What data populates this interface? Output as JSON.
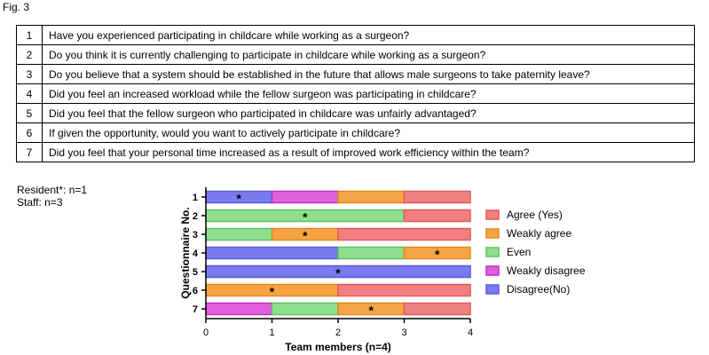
{
  "fig_label": "Fig. 3",
  "questions": [
    {
      "no": "1",
      "text": "Have you experienced participating in childcare while working as a surgeon?"
    },
    {
      "no": "2",
      "text": "Do you think it is currently challenging to participate in childcare while working as a surgeon?"
    },
    {
      "no": "3",
      "text": "Do you believe that a system should be established in the future that allows male surgeons to take paternity leave?"
    },
    {
      "no": "4",
      "text": "Did you feel an increased workload while the fellow surgeon was participating in childcare?"
    },
    {
      "no": "5",
      "text": "Did you feel that the fellow surgeon who participated in childcare was unfairly advantaged?"
    },
    {
      "no": "6",
      "text": "If given the opportunity, would you want to actively participate in childcare?"
    },
    {
      "no": "7",
      "text": "Did you feel that your personal time increased as a result of improved work efficiency within the team?"
    }
  ],
  "notes": {
    "resident": "Resident*: n=1",
    "staff": "Staff: n=3"
  },
  "chart_data": {
    "type": "bar",
    "orientation": "horizontal",
    "stacked": true,
    "xlabel": "Team members (n=4)",
    "ylabel": "Questionnaire No.",
    "xlim": [
      0,
      4
    ],
    "xticks": [
      "0",
      "1",
      "2",
      "3",
      "4"
    ],
    "categories": [
      "1",
      "2",
      "3",
      "4",
      "5",
      "6",
      "7"
    ],
    "legend_position": "right",
    "series": [
      {
        "name": "Disagree(No)",
        "color": "#7b7bf0",
        "stroke": "#5a5ae0",
        "values": [
          1,
          0,
          0,
          2,
          4,
          0,
          0
        ]
      },
      {
        "name": "Weakly disagree",
        "color": "#e060e0",
        "stroke": "#c030c0",
        "values": [
          1,
          0,
          0,
          0,
          0,
          0,
          1
        ]
      },
      {
        "name": "Even",
        "color": "#8ee08e",
        "stroke": "#60c060",
        "values": [
          0,
          3,
          1,
          1,
          0,
          0,
          1
        ]
      },
      {
        "name": "Weakly agree",
        "color": "#f5a445",
        "stroke": "#e08a20",
        "values": [
          1,
          0,
          1,
          1,
          0,
          2,
          1
        ]
      },
      {
        "name": "Agree (Yes)",
        "color": "#f08080",
        "stroke": "#e05a5a",
        "values": [
          1,
          1,
          2,
          0,
          0,
          2,
          1
        ]
      }
    ],
    "legend_order": [
      "Agree (Yes)",
      "Weakly agree",
      "Even",
      "Weakly disagree",
      "Disagree(No)"
    ],
    "resident_markers": [
      {
        "question": "1",
        "x": 0.5,
        "label": "*"
      },
      {
        "question": "2",
        "x": 1.5,
        "label": "*"
      },
      {
        "question": "3",
        "x": 1.5,
        "label": "*"
      },
      {
        "question": "4",
        "x": 3.5,
        "label": "*"
      },
      {
        "question": "5",
        "x": 2.0,
        "label": "*"
      },
      {
        "question": "6",
        "x": 1.0,
        "label": "*"
      },
      {
        "question": "7",
        "x": 2.5,
        "label": "*"
      }
    ]
  }
}
